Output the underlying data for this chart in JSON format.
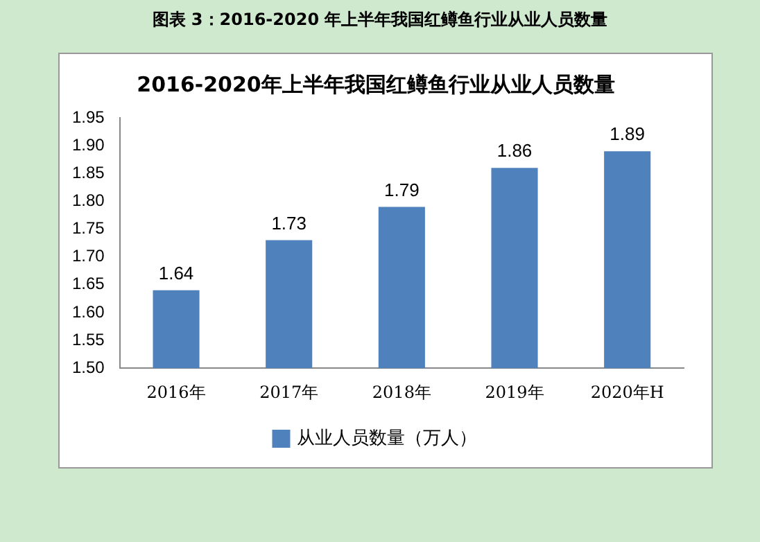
{
  "chart_data": {
    "type": "bar",
    "title": "2016-2020年上半年我国红鳟鱼行业从业人员数量",
    "annotations": [
      "图表 3：2016-2020 年上半年我国红鳟鱼行业从业人员数量"
    ],
    "categories": [
      "2016年",
      "2017年",
      "2018年",
      "2019年",
      "2020年H"
    ],
    "series": [
      {
        "name": "从业人员数量（万人）",
        "color": "#4f81bd",
        "values": [
          1.64,
          1.73,
          1.79,
          1.86,
          1.89
        ]
      }
    ],
    "ylim": [
      1.5,
      1.95
    ],
    "yticks": [
      {
        "value": 1.5,
        "label": "1.50"
      },
      {
        "value": 1.55,
        "label": "1.55"
      },
      {
        "value": 1.6,
        "label": "1.60"
      },
      {
        "value": 1.65,
        "label": "1.65"
      },
      {
        "value": 1.7,
        "label": "1.70"
      },
      {
        "value": 1.75,
        "label": "1.75"
      },
      {
        "value": 1.8,
        "label": "1.80"
      },
      {
        "value": 1.85,
        "label": "1.85"
      },
      {
        "value": 1.9,
        "label": "1.90"
      },
      {
        "value": 1.95,
        "label": "1.95"
      }
    ],
    "grid": false,
    "legend": "bottom",
    "data_labels": true
  }
}
